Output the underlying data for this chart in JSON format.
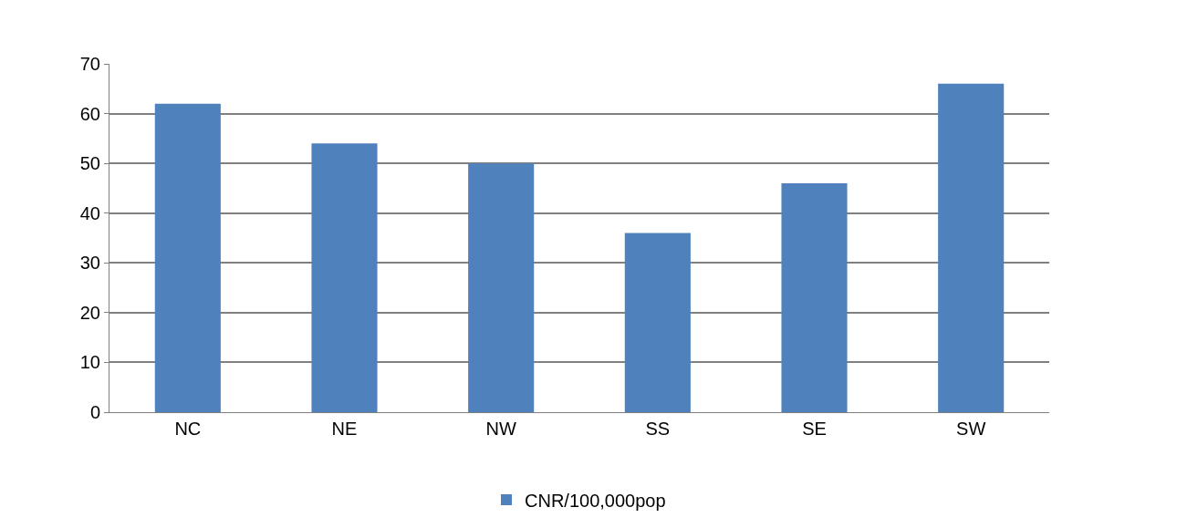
{
  "chart_data": {
    "type": "bar",
    "categories": [
      "NC",
      "NE",
      "NW",
      "SS",
      "SE",
      "SW"
    ],
    "series": [
      {
        "name": "CNR/100,000pop",
        "color": "#4f81bd",
        "values": [
          62,
          54,
          50,
          36,
          46,
          66
        ]
      }
    ],
    "ylim": [
      0,
      70
    ],
    "yticks": [
      0,
      10,
      20,
      30,
      40,
      50,
      60,
      70
    ],
    "grid": "y",
    "legend": "bottom"
  }
}
